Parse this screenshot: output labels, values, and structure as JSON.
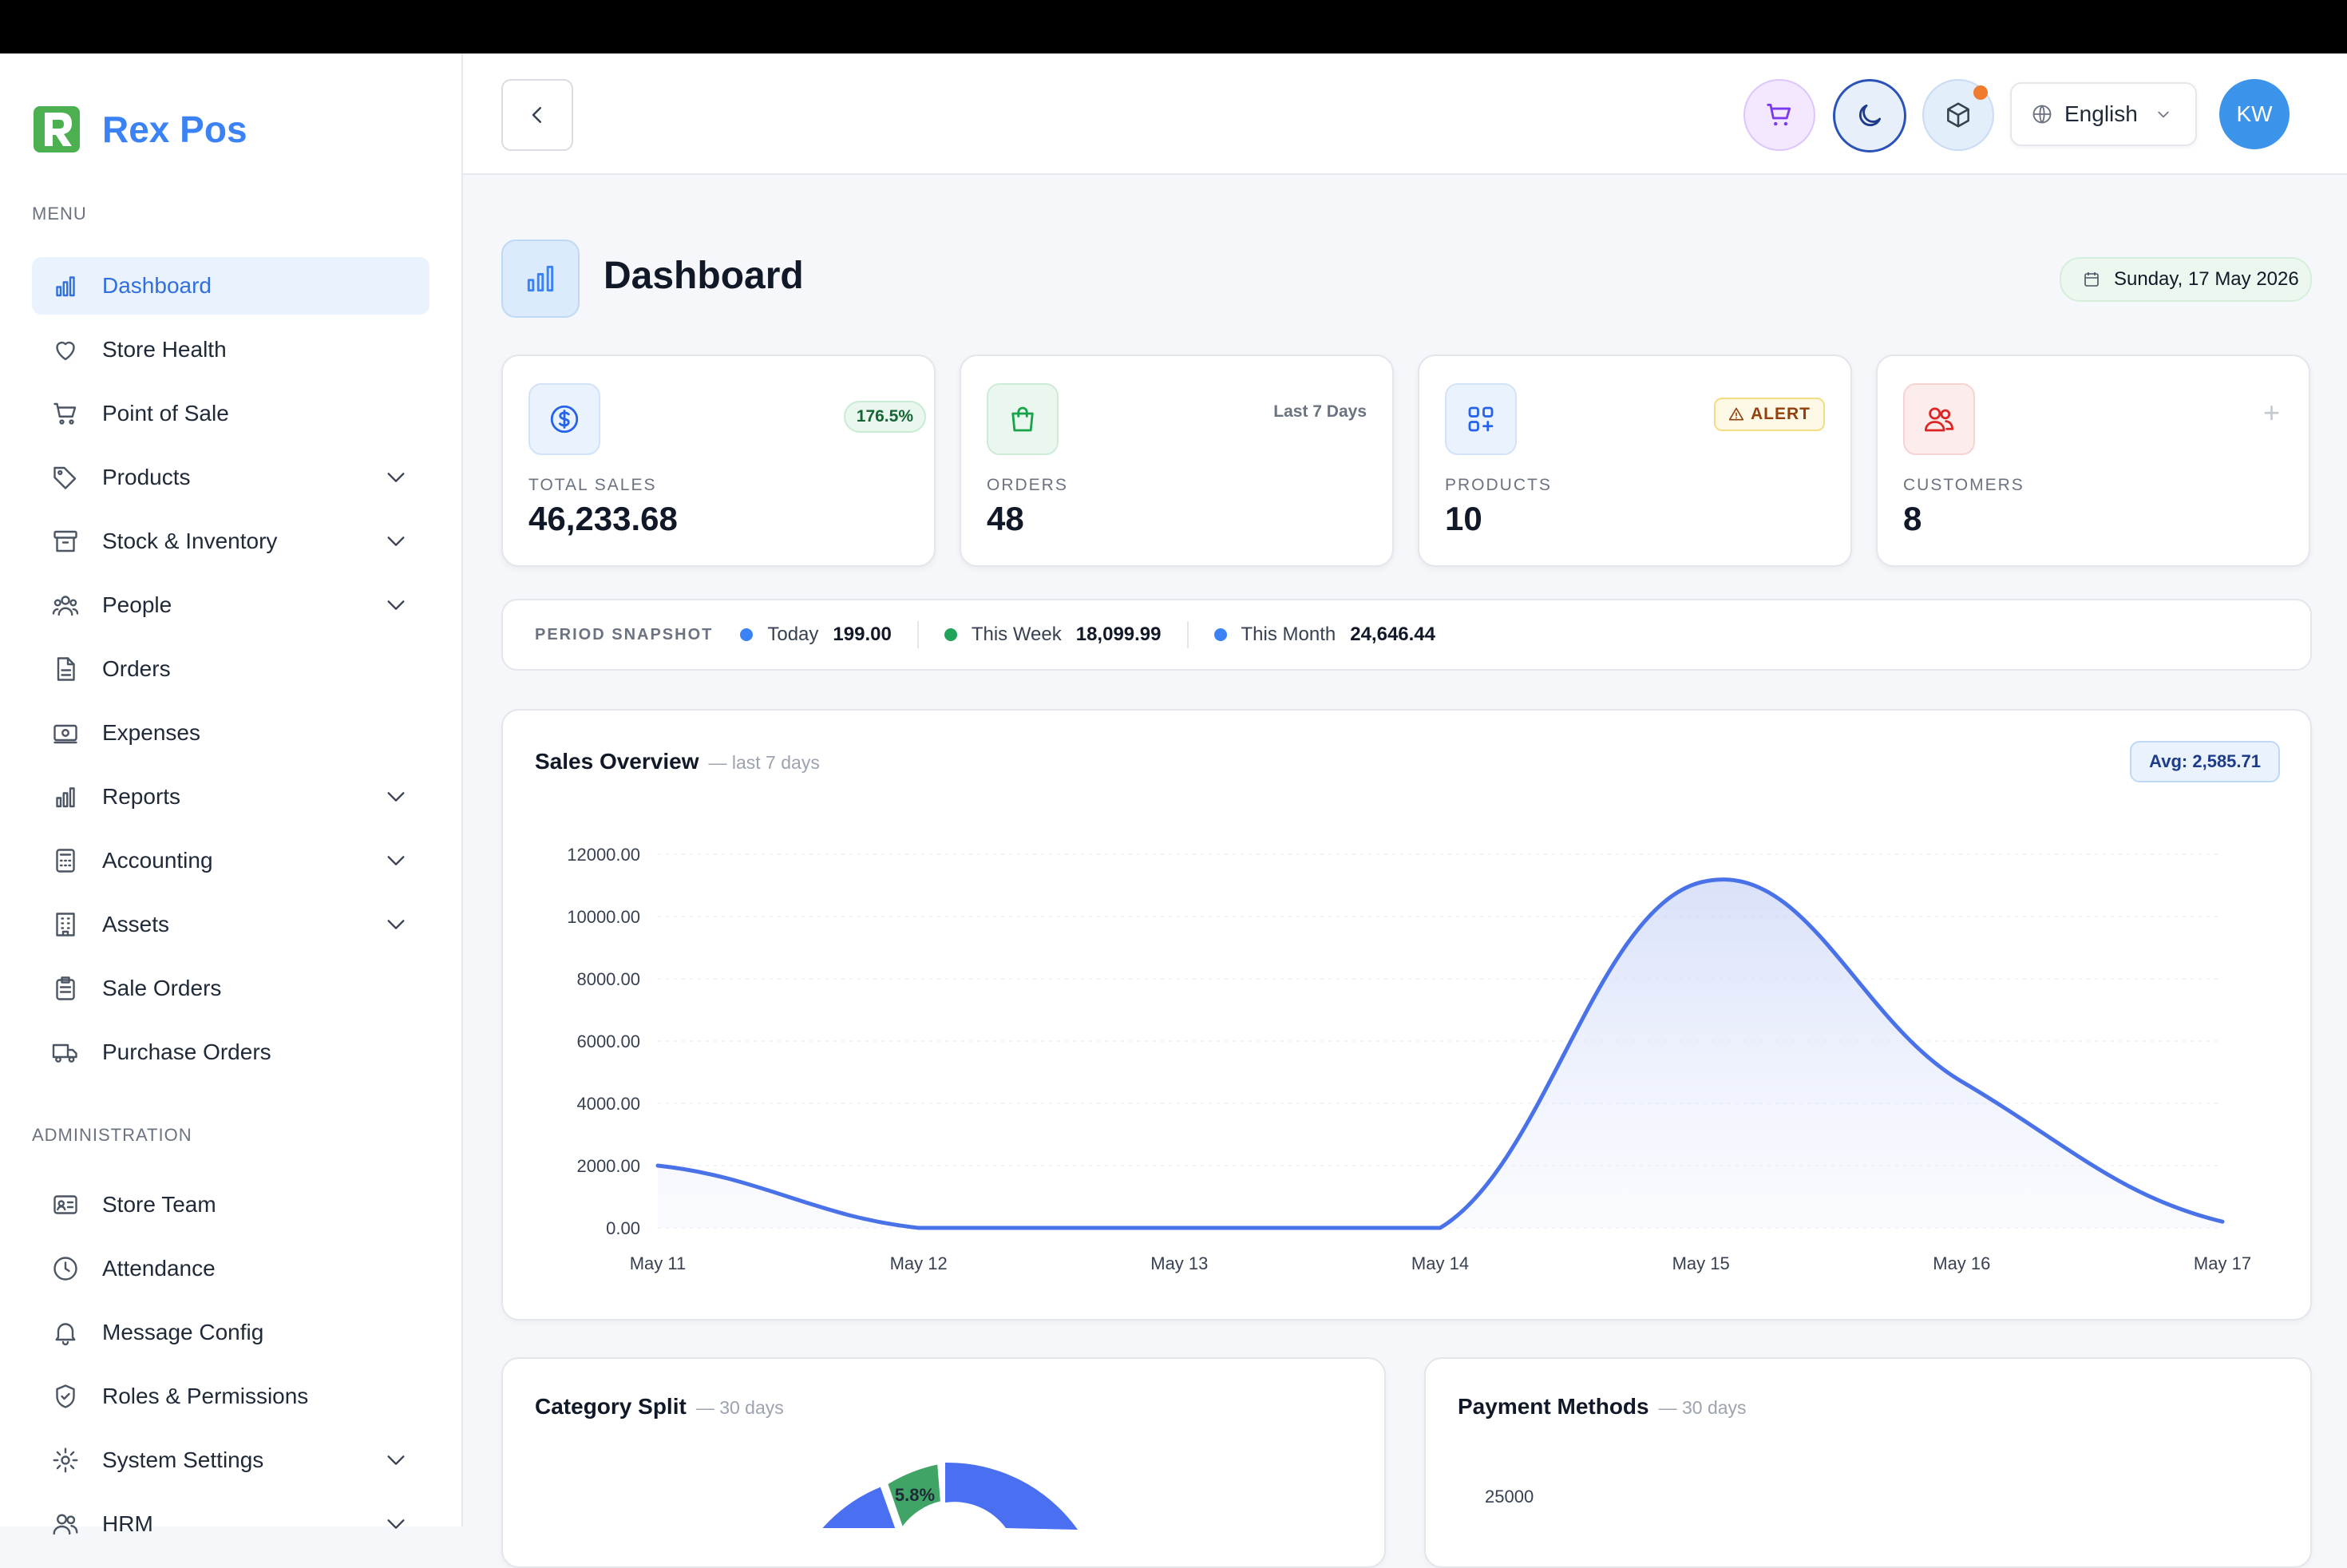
{
  "app": {
    "name": "Rex Pos"
  },
  "sidebar": {
    "menu_label": "MENU",
    "admin_label": "ADMINISTRATION",
    "items": [
      {
        "label": "Dashboard",
        "icon": "bar-chart-icon",
        "active": true,
        "expandable": false
      },
      {
        "label": "Store Health",
        "icon": "heart-icon",
        "expandable": false
      },
      {
        "label": "Point of Sale",
        "icon": "cart-icon",
        "expandable": false
      },
      {
        "label": "Products",
        "icon": "tag-icon",
        "expandable": true
      },
      {
        "label": "Stock & Inventory",
        "icon": "archive-icon",
        "expandable": true
      },
      {
        "label": "People",
        "icon": "people-icon",
        "expandable": true
      },
      {
        "label": "Orders",
        "icon": "document-icon",
        "expandable": false
      },
      {
        "label": "Expenses",
        "icon": "cash-icon",
        "expandable": false
      },
      {
        "label": "Reports",
        "icon": "bar-chart-icon",
        "expandable": true
      },
      {
        "label": "Accounting",
        "icon": "calculator-icon",
        "expandable": true
      },
      {
        "label": "Assets",
        "icon": "building-icon",
        "expandable": true
      },
      {
        "label": "Sale Orders",
        "icon": "clipboard-icon",
        "expandable": false
      },
      {
        "label": "Purchase Orders",
        "icon": "truck-icon",
        "expandable": false
      }
    ],
    "admin_items": [
      {
        "label": "Store Team",
        "icon": "id-card-icon",
        "expandable": false
      },
      {
        "label": "Attendance",
        "icon": "clock-icon",
        "expandable": false
      },
      {
        "label": "Message Config",
        "icon": "bell-icon",
        "expandable": false
      },
      {
        "label": "Roles & Permissions",
        "icon": "shield-icon",
        "expandable": false
      },
      {
        "label": "System Settings",
        "icon": "gear-icon",
        "expandable": true
      },
      {
        "label": "HRM",
        "icon": "users-icon",
        "expandable": true
      }
    ]
  },
  "header": {
    "language": "English",
    "avatar_initials": "KW"
  },
  "page": {
    "title": "Dashboard",
    "date": "Sunday, 17 May 2026"
  },
  "cards": [
    {
      "label": "TOTAL SALES",
      "value": "46,233.68",
      "tag": "176.5%",
      "icon": "dollar-circle-icon",
      "color": "#2563eb"
    },
    {
      "label": "ORDERS",
      "value": "48",
      "tag": "Last 7 Days",
      "icon": "shopping-bag-icon",
      "color": "#16a34a"
    },
    {
      "label": "PRODUCTS",
      "value": "10",
      "tag": "ALERT",
      "icon": "grid-plus-icon",
      "color": "#2563eb"
    },
    {
      "label": "CUSTOMERS",
      "value": "8",
      "tag": "+",
      "icon": "users-icon",
      "color": "#dc2626"
    }
  ],
  "snapshot": {
    "label": "PERIOD SNAPSHOT",
    "items": [
      {
        "name": "Today",
        "value": "199.00",
        "color": "#3b82f6"
      },
      {
        "name": "This Week",
        "value": "18,099.99",
        "color": "#22a35a"
      },
      {
        "name": "This Month",
        "value": "24,646.44",
        "color": "#3b82f6"
      }
    ]
  },
  "sales_overview": {
    "title": "Sales Overview",
    "subtitle": "— last 7 days",
    "avg": "Avg: 2,585.71"
  },
  "category_split": {
    "title": "Category Split",
    "subtitle": "— 30 days",
    "slice_label": "5.8%"
  },
  "payment_methods": {
    "title": "Payment Methods",
    "subtitle": "— 30 days",
    "first_tick": "25000"
  },
  "chart_data": {
    "type": "area",
    "categories": [
      "May 11",
      "May 12",
      "May 13",
      "May 14",
      "May 15",
      "May 16",
      "May 17"
    ],
    "series": [
      {
        "values": [
          2000,
          0,
          0,
          0,
          11100,
          4700,
          200
        ]
      }
    ],
    "ylim": [
      0,
      12000
    ],
    "yticks": [
      "0.00",
      "2000.00",
      "4000.00",
      "6000.00",
      "8000.00",
      "10000.00",
      "12000.00"
    ],
    "color": "#4a72e8",
    "grid": true
  }
}
